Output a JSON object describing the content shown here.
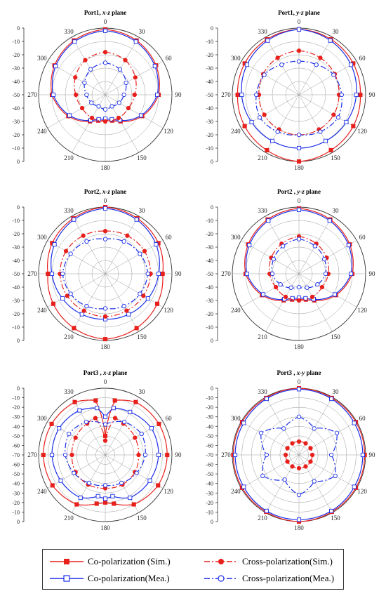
{
  "chart_data": [
    {
      "type": "polar",
      "title": "Port1, x-z plane",
      "title_prefix": "Port1, ",
      "title_italic": "x-z",
      "title_suffix": " plane",
      "rlim": [
        -50,
        0
      ],
      "r_ticks": [
        0,
        -10,
        -20,
        -30,
        -40,
        -50,
        -40,
        -30,
        -20,
        -10,
        0
      ],
      "angle_ticks": [
        "0",
        "30",
        "60",
        "90",
        "120",
        "150",
        "180",
        "210",
        "240",
        "270",
        "300",
        "330"
      ],
      "grid": true,
      "series": [
        {
          "name": "Co-polarization (Sim.)",
          "angles_deg": [
            0,
            30,
            60,
            90,
            120,
            150,
            165,
            180,
            195,
            210,
            240,
            270,
            300,
            330
          ],
          "values": [
            -1,
            -3,
            -6,
            -10,
            -18,
            -27,
            -30,
            -31,
            -30,
            -27,
            -18,
            -10,
            -6,
            -3
          ]
        },
        {
          "name": "Co-polarization(Mea.)",
          "angles_deg": [
            0,
            30,
            60,
            90,
            120,
            150,
            165,
            180,
            195,
            210,
            240,
            270,
            300,
            330
          ],
          "values": [
            -2,
            -4,
            -7,
            -11,
            -19,
            -28,
            -31,
            -32,
            -31,
            -28,
            -19,
            -11,
            -7,
            -4
          ]
        },
        {
          "name": "Cross-polarization(Sim.)",
          "angles_deg": [
            0,
            30,
            60,
            90,
            120,
            150,
            180,
            210,
            240,
            270,
            300,
            330
          ],
          "values": [
            -18,
            -20,
            -24,
            -28,
            -30,
            -30,
            -30,
            -30,
            -30,
            -28,
            -24,
            -20
          ]
        },
        {
          "name": "Cross-polarization(Mea.)",
          "angles_deg": [
            0,
            30,
            60,
            90,
            120,
            150,
            180,
            210,
            240,
            270,
            300,
            330
          ],
          "values": [
            -26,
            -28,
            -32,
            -36,
            -38,
            -40,
            -39,
            -40,
            -38,
            -36,
            -32,
            -28
          ]
        }
      ]
    },
    {
      "type": "polar",
      "title": "Port1, y-z plane",
      "title_prefix": "Port1, ",
      "title_italic": "y-z",
      "title_suffix": " plane",
      "rlim": [
        -50,
        0
      ],
      "r_ticks": [
        0,
        -10,
        -20,
        -30,
        -40,
        -50,
        -40,
        -30,
        -20,
        -10,
        0
      ],
      "angle_ticks": [
        "0",
        "30",
        "60",
        "90",
        "120",
        "150",
        "180",
        "210",
        "240",
        "270",
        "300",
        "330"
      ],
      "grid": true,
      "series": [
        {
          "name": "Co-polarization (Sim.)",
          "angles_deg": [
            0,
            30,
            60,
            90,
            120,
            150,
            180,
            210,
            240,
            270,
            300,
            330
          ],
          "values": [
            -1,
            -2,
            -3,
            -4,
            -3,
            -2,
            0,
            -2,
            -3,
            -4,
            -3,
            -2
          ]
        },
        {
          "name": "Co-polarization(Mea.)",
          "angles_deg": [
            0,
            30,
            60,
            90,
            120,
            150,
            180,
            210,
            240,
            270,
            300,
            330
          ],
          "values": [
            -1,
            -3,
            -5,
            -7,
            -9,
            -10,
            -10,
            -10,
            -9,
            -7,
            -5,
            -3
          ]
        },
        {
          "name": "Cross-polarization(Sim.)",
          "angles_deg": [
            0,
            30,
            60,
            90,
            120,
            150,
            180,
            210,
            240,
            270,
            300,
            330
          ],
          "values": [
            -17,
            -18,
            -19,
            -20,
            -20,
            -20,
            -20,
            -20,
            -20,
            -20,
            -19,
            -18
          ]
        },
        {
          "name": "Cross-polarization(Mea.)",
          "angles_deg": [
            0,
            30,
            60,
            90,
            120,
            150,
            180,
            210,
            240,
            270,
            300,
            330
          ],
          "values": [
            -25,
            -24,
            -20,
            -18,
            -16,
            -18,
            -20,
            -18,
            -16,
            -18,
            -20,
            -24
          ]
        }
      ]
    },
    {
      "type": "polar",
      "title": "Port2, x-z plane",
      "title_prefix": "Port2, ",
      "title_italic": "x-z",
      "title_suffix": " plane",
      "rlim": [
        -50,
        0
      ],
      "r_ticks": [
        0,
        -10,
        -20,
        -30,
        -40,
        -50,
        -40,
        -30,
        -20,
        -10,
        0
      ],
      "angle_ticks": [
        "0",
        "30",
        "60",
        "90",
        "120",
        "150",
        "180",
        "210",
        "240",
        "270",
        "300",
        "330"
      ],
      "grid": true,
      "series": [
        {
          "name": "Co-polarization (Sim.)",
          "angles_deg": [
            0,
            30,
            60,
            90,
            120,
            150,
            180,
            210,
            240,
            270,
            300,
            330
          ],
          "values": [
            0,
            -2,
            -4,
            -7,
            -5,
            -3,
            -1,
            -3,
            -5,
            -7,
            -4,
            -2
          ]
        },
        {
          "name": "Co-polarization(Mea.)",
          "angles_deg": [
            0,
            30,
            60,
            90,
            120,
            150,
            180,
            210,
            240,
            270,
            300,
            330
          ],
          "values": [
            -1,
            -3,
            -6,
            -10,
            -13,
            -15,
            -16,
            -15,
            -13,
            -10,
            -6,
            -3
          ]
        },
        {
          "name": "Cross-polarization(Sim.)",
          "angles_deg": [
            0,
            30,
            60,
            90,
            120,
            150,
            180,
            210,
            240,
            270,
            300,
            330
          ],
          "values": [
            -18,
            -17,
            -16,
            -16,
            -17,
            -18,
            -18,
            -18,
            -17,
            -16,
            -16,
            -17
          ]
        },
        {
          "name": "Cross-polarization(Mea.)",
          "angles_deg": [
            0,
            30,
            60,
            90,
            120,
            150,
            180,
            210,
            240,
            270,
            300,
            330
          ],
          "values": [
            -24,
            -22,
            -20,
            -18,
            -20,
            -22,
            -24,
            -22,
            -20,
            -18,
            -20,
            -22
          ]
        }
      ]
    },
    {
      "type": "polar",
      "title": "Port2 , y-z plane",
      "title_prefix": "Port2 , ",
      "title_italic": "y-z",
      "title_suffix": " plane",
      "rlim": [
        -50,
        0
      ],
      "r_ticks": [
        0,
        -10,
        -20,
        -30,
        -40,
        -50,
        -40,
        -30,
        -20,
        -10,
        0
      ],
      "angle_ticks": [
        "0",
        "30",
        "60",
        "90",
        "120",
        "150",
        "180",
        "210",
        "240",
        "270",
        "300",
        "330"
      ],
      "grid": true,
      "series": [
        {
          "name": "Co-polarization (Sim.)",
          "angles_deg": [
            0,
            30,
            60,
            90,
            120,
            150,
            165,
            180,
            195,
            210,
            240,
            270,
            300,
            330
          ],
          "values": [
            -1,
            -3,
            -6,
            -10,
            -18,
            -27,
            -30,
            -31,
            -30,
            -27,
            -18,
            -10,
            -6,
            -3
          ]
        },
        {
          "name": "Co-polarization(Mea.)",
          "angles_deg": [
            0,
            30,
            60,
            90,
            120,
            150,
            165,
            180,
            195,
            210,
            240,
            270,
            300,
            330
          ],
          "values": [
            -2,
            -4,
            -7,
            -11,
            -19,
            -28,
            -31,
            -32,
            -31,
            -28,
            -19,
            -11,
            -7,
            -4
          ]
        },
        {
          "name": "Cross-polarization(Sim.)",
          "angles_deg": [
            0,
            30,
            60,
            90,
            120,
            150,
            180,
            210,
            240,
            270,
            300,
            330
          ],
          "values": [
            -22,
            -24,
            -26,
            -28,
            -30,
            -30,
            -30,
            -30,
            -30,
            -28,
            -26,
            -24
          ]
        },
        {
          "name": "Cross-polarization(Mea.)",
          "angles_deg": [
            0,
            30,
            60,
            90,
            120,
            150,
            180,
            210,
            240,
            270,
            300,
            330
          ],
          "values": [
            -24,
            -26,
            -28,
            -30,
            -34,
            -38,
            -40,
            -38,
            -34,
            -30,
            -28,
            -26
          ]
        }
      ]
    },
    {
      "type": "polar",
      "title": "Port3 , x-z plane",
      "title_prefix": "Port3 , ",
      "title_italic": "x-z",
      "title_suffix": " plane",
      "rlim": [
        -70,
        0
      ],
      "r_ticks": [
        0,
        -10,
        -20,
        -30,
        -40,
        -50,
        -60,
        -70,
        -60,
        -50,
        -40,
        -30,
        -20,
        -10,
        0
      ],
      "angle_ticks": [
        "0",
        "30",
        "60",
        "90",
        "120",
        "150",
        "180",
        "210",
        "240",
        "270",
        "300",
        "330"
      ],
      "grid": true,
      "series": [
        {
          "name": "Co-polarization (Sim.)",
          "angles_deg": [
            0,
            10,
            30,
            60,
            90,
            120,
            150,
            170,
            180,
            190,
            210,
            240,
            270,
            300,
            330,
            350
          ],
          "values": [
            -50,
            -12,
            -6,
            -5,
            -5,
            -6,
            -10,
            -18,
            -20,
            -18,
            -10,
            -6,
            -5,
            -5,
            -6,
            -12
          ]
        },
        {
          "name": "Co-polarization(Mea.)",
          "angles_deg": [
            0,
            10,
            30,
            60,
            90,
            120,
            150,
            170,
            180,
            190,
            210,
            240,
            270,
            300,
            330,
            350
          ],
          "values": [
            -30,
            -20,
            -18,
            -14,
            -14,
            -16,
            -18,
            -26,
            -24,
            -26,
            -18,
            -16,
            -14,
            -14,
            -16,
            -20
          ]
        },
        {
          "name": "Cross-polarization(Sim.)",
          "angles_deg": [
            0,
            15,
            30,
            60,
            90,
            120,
            150,
            180,
            210,
            240,
            270,
            300,
            330,
            345
          ],
          "values": [
            -55,
            -30,
            -32,
            -34,
            -35,
            -34,
            -34,
            -35,
            -34,
            -34,
            -35,
            -34,
            -32,
            -30
          ]
        },
        {
          "name": "Cross-polarization(Mea.)",
          "angles_deg": [
            0,
            30,
            60,
            90,
            120,
            150,
            180,
            210,
            240,
            270,
            300,
            330
          ],
          "values": [
            -38,
            -30,
            -26,
            -28,
            -32,
            -36,
            -38,
            -36,
            -32,
            -28,
            -26,
            -30
          ]
        }
      ]
    },
    {
      "type": "polar",
      "title": "Port3 , x-y plane",
      "title_prefix": "Port3 , ",
      "title_italic": "x-y",
      "title_suffix": " plane",
      "rlim": [
        -70,
        0
      ],
      "r_ticks": [
        0,
        -10,
        -20,
        -30,
        -40,
        -50,
        -60,
        -70,
        -60,
        -50,
        -40,
        -30,
        -20,
        -10,
        0
      ],
      "angle_ticks": [
        "0",
        "30",
        "60",
        "90",
        "120",
        "150",
        "180",
        "210",
        "240",
        "270",
        "300",
        "330"
      ],
      "grid": true,
      "series": [
        {
          "name": "Co-polarization (Sim.)",
          "angles_deg": [
            0,
            30,
            60,
            90,
            120,
            150,
            180,
            210,
            240,
            270,
            300,
            330
          ],
          "values": [
            0,
            -1,
            -1,
            -1,
            -1,
            -1,
            0,
            -1,
            -1,
            -1,
            -1,
            -1
          ]
        },
        {
          "name": "Co-polarization(Mea.)",
          "angles_deg": [
            0,
            30,
            60,
            90,
            120,
            150,
            180,
            210,
            240,
            270,
            300,
            330
          ],
          "values": [
            -1,
            -2,
            -3,
            -3,
            -3,
            -2,
            -2,
            -2,
            -3,
            -3,
            -3,
            -2
          ]
        },
        {
          "name": "Cross-polarization(Sim.)",
          "angles_deg": [
            0,
            30,
            60,
            90,
            120,
            150,
            180,
            210,
            240,
            270,
            300,
            330
          ],
          "values": [
            -56,
            -56,
            -56,
            -56,
            -56,
            -56,
            -56,
            -56,
            -56,
            -56,
            -56,
            -56
          ]
        },
        {
          "name": "Cross-polarization(Mea.)",
          "angles_deg": [
            0,
            30,
            60,
            90,
            120,
            150,
            180,
            210,
            240,
            270,
            300,
            330
          ],
          "values": [
            -30,
            -38,
            -24,
            -36,
            -26,
            -38,
            -28,
            -40,
            -26,
            -36,
            -24,
            -38
          ]
        }
      ]
    }
  ],
  "legend": {
    "placement": "bottom",
    "items": [
      {
        "label": "Co-polarization (Sim.)",
        "color": "#e8201c",
        "dash": "solid",
        "marker": "filled-square"
      },
      {
        "label": "Cross-polarization(Sim.)",
        "color": "#e8201c",
        "dash": "dashdot",
        "marker": "filled-circle"
      },
      {
        "label": "Co-polarization(Mea.)",
        "color": "#1a2ee8",
        "dash": "solid",
        "marker": "open-square"
      },
      {
        "label": "Cross-polarization(Mea.)",
        "color": "#1a2ee8",
        "dash": "dashdot",
        "marker": "open-circle"
      }
    ]
  },
  "colors": {
    "sim": "#e8201c",
    "mea": "#1a2ee8",
    "grid": "#9a9a9a",
    "axis": "#333333"
  }
}
